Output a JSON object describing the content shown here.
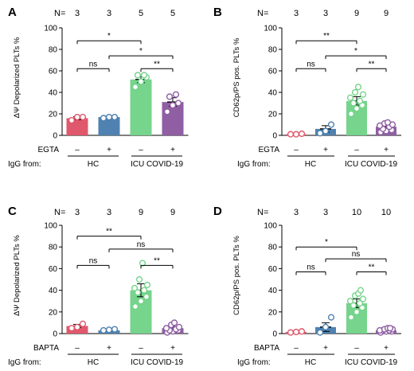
{
  "figure": {
    "panels": [
      {
        "label": "A",
        "n_prefix": "N=",
        "n_values": [
          "3",
          "3",
          "5",
          "5"
        ],
        "condition_label": "EGTA",
        "igg_label": "IgG from:",
        "group_labels": [
          "HC",
          "ICU COVID-19"
        ],
        "treatment_signs": [
          "–",
          "+",
          "–",
          "+"
        ]
      },
      {
        "label": "B",
        "n_prefix": "N=",
        "n_values": [
          "3",
          "3",
          "9",
          "9"
        ],
        "condition_label": "EGTA",
        "igg_label": "IgG from:",
        "group_labels": [
          "HC",
          "ICU COVID-19"
        ],
        "treatment_signs": [
          "–",
          "+",
          "–",
          "+"
        ]
      },
      {
        "label": "C",
        "n_prefix": "N=",
        "n_values": [
          "3",
          "3",
          "9",
          "9"
        ],
        "condition_label": "BAPTA",
        "igg_label": "IgG from:",
        "group_labels": [
          "HC",
          "ICU COVID-19"
        ],
        "treatment_signs": [
          "–",
          "+",
          "–",
          "+"
        ]
      },
      {
        "label": "D",
        "n_prefix": "N=",
        "n_values": [
          "3",
          "3",
          "10",
          "10"
        ],
        "condition_label": "BAPTA",
        "igg_label": "IgG from:",
        "group_labels": [
          "HC",
          "ICU COVID-19"
        ],
        "treatment_signs": [
          "–",
          "+",
          "–",
          "+"
        ]
      }
    ]
  },
  "chart_data": [
    {
      "type": "bar",
      "ylabel": "ΔΨ Depolarized PLTs %",
      "ylim": [
        0,
        100
      ],
      "yticks": [
        0,
        20,
        40,
        60,
        80,
        100
      ],
      "colors": [
        "#e0586b",
        "#4f82b0",
        "#76d48c",
        "#8f5ea3"
      ],
      "values": [
        16,
        17,
        52,
        31
      ],
      "errors": [
        1.5,
        0.8,
        3,
        4
      ],
      "points": [
        [
          14,
          17,
          17
        ],
        [
          16,
          17,
          17
        ],
        [
          45,
          50,
          54,
          56,
          56
        ],
        [
          22,
          28,
          30,
          36,
          38
        ]
      ],
      "comparisons": [
        {
          "from": 0,
          "to": 2,
          "label": "*",
          "y": 88
        },
        {
          "from": 1,
          "to": 3,
          "label": "*",
          "y": 74
        },
        {
          "from": 0,
          "to": 1,
          "label": "ns",
          "y": 62
        },
        {
          "from": 2,
          "to": 3,
          "label": "**",
          "y": 62
        }
      ]
    },
    {
      "type": "bar",
      "ylabel": "CD62p/PS pos. PLTs %",
      "ylim": [
        0,
        100
      ],
      "yticks": [
        0,
        20,
        40,
        60,
        80,
        100
      ],
      "colors": [
        "#e0586b",
        "#4f82b0",
        "#76d48c",
        "#8f5ea3"
      ],
      "values": [
        1,
        6,
        32,
        8
      ],
      "errors": [
        0.5,
        3,
        4,
        2
      ],
      "points": [
        [
          1,
          1,
          1.5
        ],
        [
          2,
          4,
          10
        ],
        [
          20,
          25,
          28,
          30,
          32,
          35,
          38,
          40,
          45
        ],
        [
          3,
          4,
          5,
          6,
          8,
          9,
          10,
          11,
          12
        ]
      ],
      "comparisons": [
        {
          "from": 0,
          "to": 2,
          "label": "**",
          "y": 88
        },
        {
          "from": 1,
          "to": 3,
          "label": "*",
          "y": 74
        },
        {
          "from": 0,
          "to": 1,
          "label": "ns",
          "y": 62
        },
        {
          "from": 2,
          "to": 3,
          "label": "**",
          "y": 62
        }
      ]
    },
    {
      "type": "bar",
      "ylabel": "ΔΨ Depolarized PLTs %",
      "ylim": [
        0,
        100
      ],
      "yticks": [
        0,
        20,
        40,
        60,
        80,
        100
      ],
      "colors": [
        "#e0586b",
        "#4f82b0",
        "#76d48c",
        "#8f5ea3"
      ],
      "values": [
        7,
        3,
        40,
        5
      ],
      "errors": [
        1.5,
        0.8,
        6,
        1.5
      ],
      "points": [
        [
          5,
          6,
          9
        ],
        [
          3,
          3.5,
          4
        ],
        [
          25,
          30,
          34,
          38,
          40,
          42,
          45,
          50,
          65
        ],
        [
          1,
          2,
          3,
          3,
          4,
          5,
          6,
          8,
          10
        ]
      ],
      "comparisons": [
        {
          "from": 0,
          "to": 2,
          "label": "**",
          "y": 90
        },
        {
          "from": 1,
          "to": 3,
          "label": "ns",
          "y": 78
        },
        {
          "from": 0,
          "to": 1,
          "label": "ns",
          "y": 63
        },
        {
          "from": 2,
          "to": 3,
          "label": "**",
          "y": 63
        }
      ]
    },
    {
      "type": "bar",
      "ylabel": "CD62p/PS pos. PLTs %",
      "ylim": [
        0,
        100
      ],
      "yticks": [
        0,
        20,
        40,
        60,
        80,
        100
      ],
      "colors": [
        "#e0586b",
        "#4f82b0",
        "#76d48c",
        "#8f5ea3"
      ],
      "values": [
        1.5,
        6,
        28,
        3
      ],
      "errors": [
        0.5,
        4,
        4,
        0.8
      ],
      "points": [
        [
          1,
          1.5,
          2
        ],
        [
          1,
          6,
          15
        ],
        [
          15,
          20,
          24,
          26,
          28,
          30,
          32,
          35,
          37,
          40
        ],
        [
          1,
          2,
          2,
          3,
          3,
          3,
          4,
          4,
          5,
          5
        ]
      ],
      "comparisons": [
        {
          "from": 0,
          "to": 2,
          "label": "*",
          "y": 80
        },
        {
          "from": 1,
          "to": 3,
          "label": "ns",
          "y": 69
        },
        {
          "from": 0,
          "to": 1,
          "label": "ns",
          "y": 57
        },
        {
          "from": 2,
          "to": 3,
          "label": "**",
          "y": 57
        }
      ]
    }
  ]
}
